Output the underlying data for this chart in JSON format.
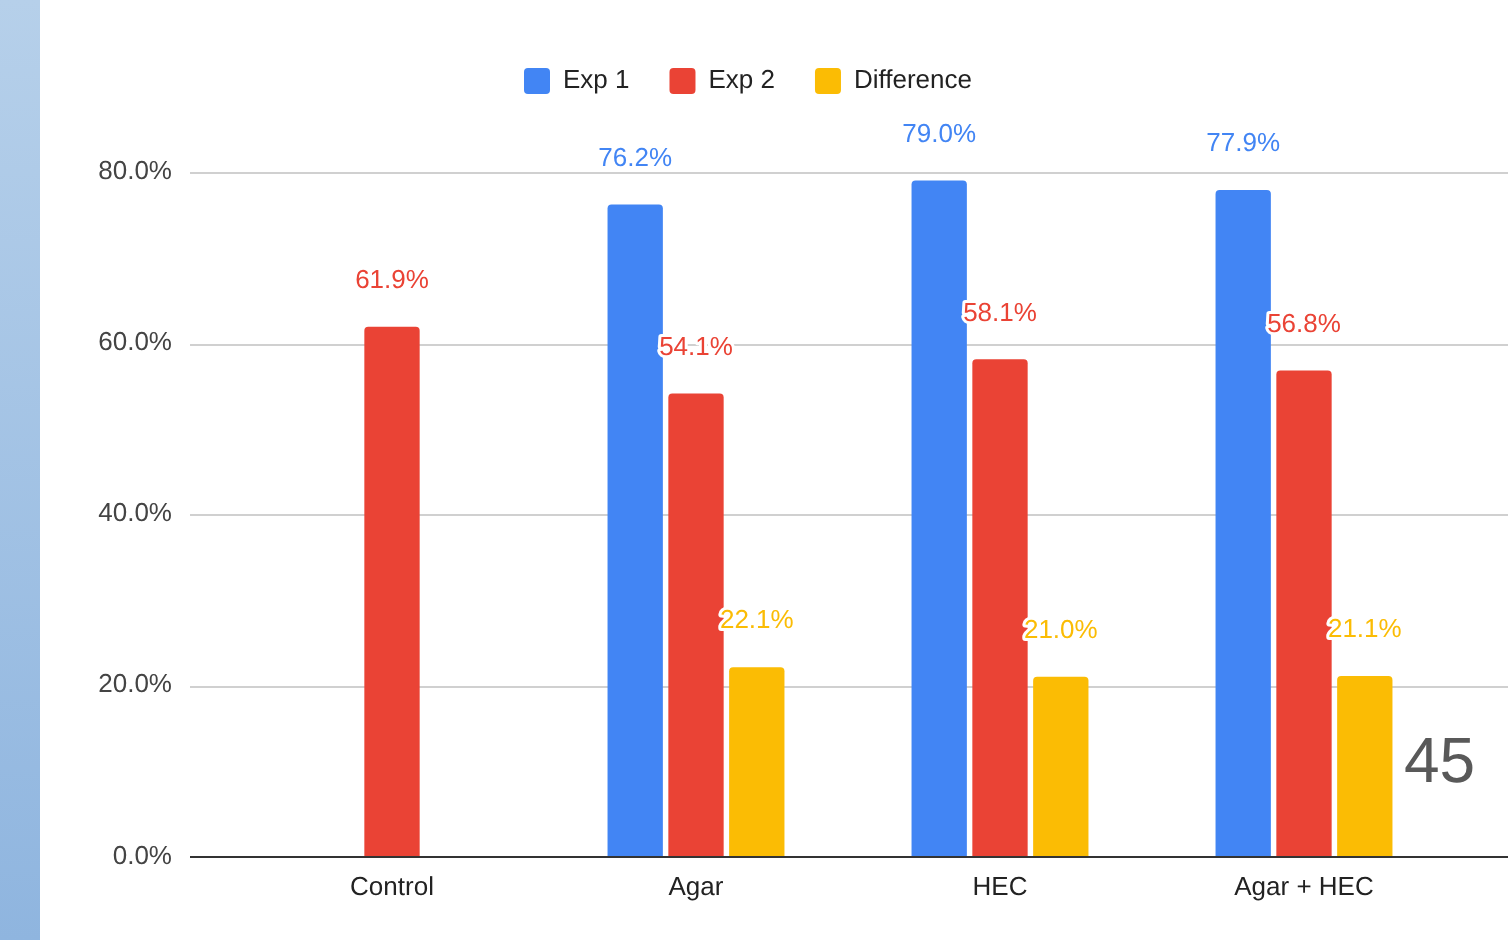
{
  "chart_data": {
    "type": "bar",
    "categories": [
      "Control",
      "Agar",
      "HEC",
      "Agar + HEC"
    ],
    "series": [
      {
        "name": "Exp 1",
        "color": "#4285f4",
        "values": [
          null,
          76.2,
          79.0,
          77.9
        ],
        "value_labels": [
          null,
          "76.2%",
          "79.0%",
          "77.9%"
        ]
      },
      {
        "name": "Exp 2",
        "color": "#ea4335",
        "values": [
          61.9,
          54.1,
          58.1,
          56.8
        ],
        "value_labels": [
          "61.9%",
          "54.1%",
          "58.1%",
          "56.8%"
        ]
      },
      {
        "name": "Difference",
        "color": "#fbbc04",
        "values": [
          null,
          22.1,
          21.0,
          21.1
        ],
        "value_labels": [
          null,
          "22.1%",
          "21.0%",
          "21.1%"
        ]
      }
    ],
    "ylim": [
      0,
      80
    ],
    "yticks": [
      {
        "value": 0,
        "label": "0.0%"
      },
      {
        "value": 20,
        "label": "20.0%"
      },
      {
        "value": 40,
        "label": "40.0%"
      },
      {
        "value": 60,
        "label": "60.0%"
      },
      {
        "value": 80,
        "label": "80.0%"
      }
    ],
    "grid": "y",
    "legend": "top",
    "annotations": [
      "45"
    ]
  }
}
